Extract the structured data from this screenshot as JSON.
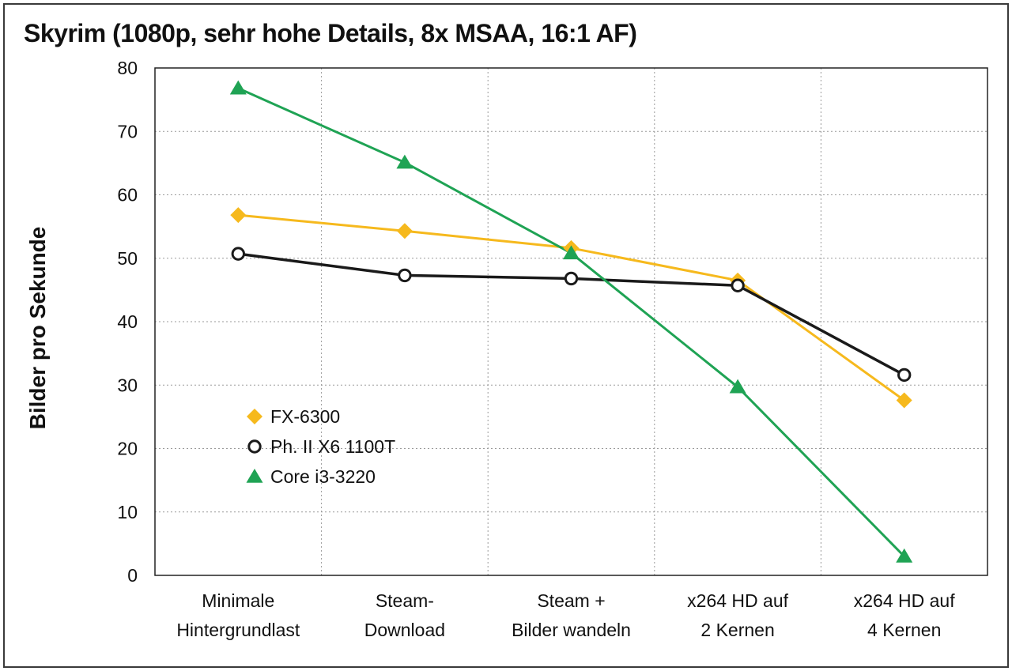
{
  "chart_data": {
    "type": "line",
    "title": "Skyrim (1080p, sehr hohe Details, 8x MSAA, 16:1 AF)",
    "xlabel": "",
    "ylabel": "Bilder pro Sekunde",
    "ylim": [
      0,
      80
    ],
    "yticks": [
      "0",
      "10",
      "20",
      "30",
      "40",
      "50",
      "60",
      "70",
      "80"
    ],
    "grid": true,
    "legend_position": "left-center",
    "categories": [
      [
        "Minimale",
        "Hintergrundlast"
      ],
      [
        "Steam-",
        "Download"
      ],
      [
        "Steam +",
        "Bilder wandeln"
      ],
      [
        "x264 HD auf",
        "2 Kernen"
      ],
      [
        "x264 HD auf",
        "4 Kernen"
      ]
    ],
    "series": [
      {
        "name": "FX-6300",
        "marker": "diamond",
        "color": "#f6b91d",
        "values": [
          56.8,
          54.3,
          51.6,
          46.5,
          27.6
        ]
      },
      {
        "name": "Ph. II X6 1100T",
        "marker": "circle",
        "color": "#1a1a1a",
        "values": [
          50.7,
          47.3,
          46.8,
          45.7,
          31.6
        ]
      },
      {
        "name": "Core i3-3220",
        "marker": "triangle",
        "color": "#1fa354",
        "values": [
          76.8,
          65.1,
          50.8,
          29.7,
          3.0
        ]
      }
    ]
  }
}
